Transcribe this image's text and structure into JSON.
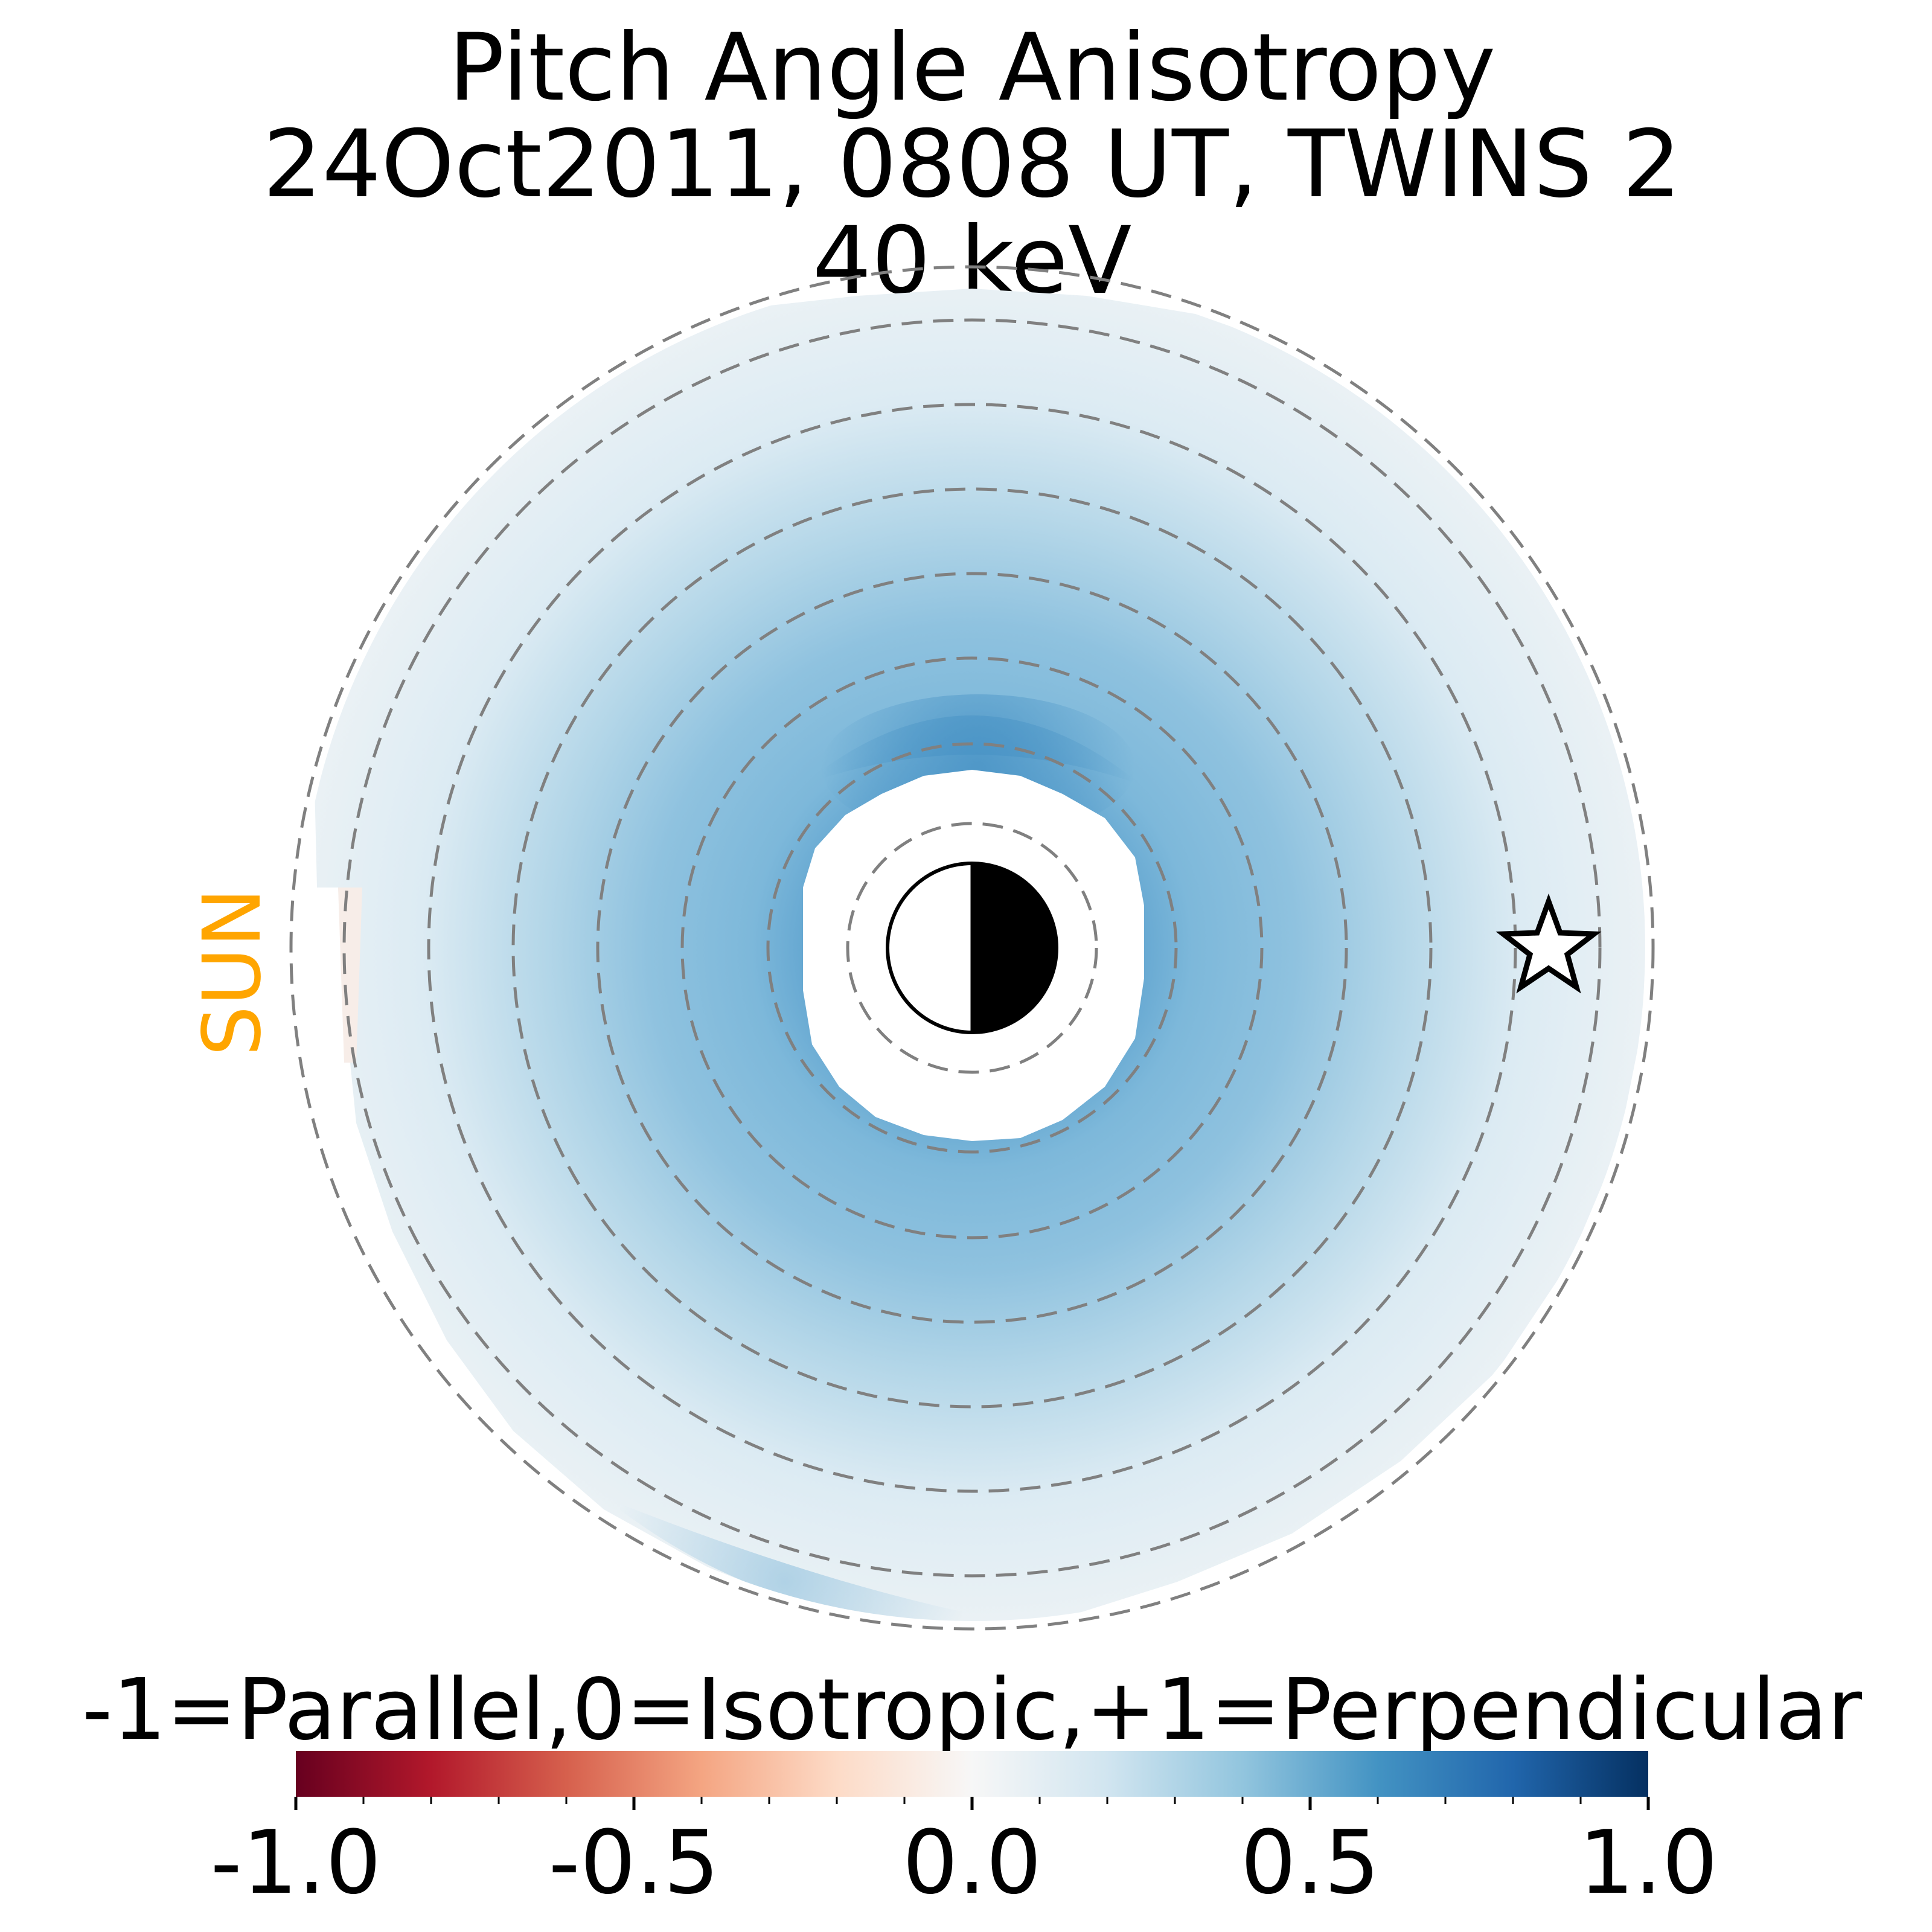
{
  "chart_data": {
    "type": "heatmap",
    "title": [
      "Pitch Angle Anisotropy",
      "24Oct2011, 0808 UT,  TWINS 2",
      "40 keV"
    ],
    "sun_label": "SUN",
    "colorbar": {
      "label": "-1=Parallel,0=Isotropic,+1=Perpendicular",
      "colormap": "RdBu",
      "range": [
        -1.0,
        1.0
      ],
      "ticks": [
        -1.0,
        -0.5,
        0.0,
        0.5,
        1.0
      ],
      "tick_labels": [
        "-1.0",
        "-0.5",
        "0.0",
        "0.5",
        "1.0"
      ],
      "stops": [
        "#67001f",
        "#b2182b",
        "#d6604d",
        "#f4a582",
        "#fddbc7",
        "#f7f7f7",
        "#d1e5f0",
        "#92c5de",
        "#4393c3",
        "#2166ac",
        "#053061"
      ]
    },
    "polar_map": {
      "dashed_rings": 8,
      "earth_symbol": "half-lit-earth",
      "satellite_marker": "star",
      "anisotropy": {
        "peak_value": 0.55,
        "peak_location": "inner ring, noon side",
        "outer_value": 0.05,
        "dayside_edge_value": -0.02
      }
    },
    "colors": {
      "sun": "#FFA500",
      "ring_dash": "#808080"
    }
  }
}
